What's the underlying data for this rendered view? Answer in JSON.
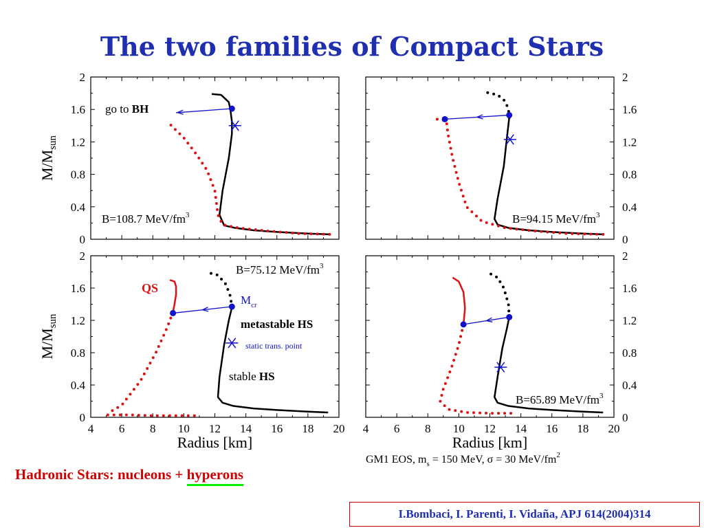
{
  "title": "The two families of Compact Stars",
  "footer": {
    "prefix": "Hadronic Stars: nucleons + ",
    "highlight": "hyperons"
  },
  "citation": "I.Bombaci, I. Parenti, I. Vidaña, APJ 614(2004)314",
  "eos_note": {
    "a": "GM1 EOS,   m",
    "a_sub": "s",
    "b": " = 150 MeV,    σ = 30 MeV/fm",
    "b_sup": "2"
  },
  "colors": {
    "hadronic": "#000000",
    "quark": "#dd1111",
    "transition": "#1111cc",
    "title": "#1f2fb0"
  },
  "chart_data": [
    {
      "type": "line",
      "position": "top-left",
      "xlim": [
        4,
        20
      ],
      "ylim": [
        0,
        2
      ],
      "yticks": [
        "0",
        "0.4",
        "0.8",
        "1.2",
        "1.6",
        "2"
      ],
      "ylabel": "M/M",
      "ylabel_sub": "sun",
      "label": {
        "text": "B=108.7 MeV/fm",
        "sup": "3"
      },
      "series": [
        {
          "style": "solid",
          "x": [
            19.4,
            18.0,
            16.0,
            14.5,
            13.3,
            12.6,
            12.3,
            12.5,
            12.9,
            13.1,
            13.1,
            13.0,
            12.9,
            12.4,
            11.8
          ],
          "y": [
            0.06,
            0.07,
            0.09,
            0.11,
            0.14,
            0.17,
            0.3,
            0.6,
            1.0,
            1.3,
            1.45,
            1.6,
            1.69,
            1.78,
            1.79
          ]
        },
        {
          "style": "dotted",
          "color_key": "quark",
          "x": [
            19.4,
            17.5,
            15.5,
            13.5,
            12.5,
            12.2,
            12.0,
            11.5,
            10.8,
            10.0,
            9.2,
            9.0
          ],
          "y": [
            0.06,
            0.07,
            0.1,
            0.14,
            0.18,
            0.3,
            0.6,
            0.85,
            1.05,
            1.25,
            1.4,
            1.44
          ]
        }
      ],
      "transition": {
        "from": [
          13.1,
          1.61
        ],
        "to": [
          9.5,
          1.56
        ]
      },
      "static_point": [
        13.3,
        1.4
      ],
      "annotation": {
        "prefix": "go to ",
        "bold": "BH"
      }
    },
    {
      "type": "line",
      "position": "top-right",
      "xlim": [
        4,
        20
      ],
      "ylim": [
        0,
        2
      ],
      "yticks": [
        "0",
        "0.4",
        "0.8",
        "1.2",
        "1.6",
        "2"
      ],
      "label": {
        "text": "B=94.15 MeV/fm",
        "sup": "3"
      },
      "series": [
        {
          "style": "solid",
          "x": [
            19.3,
            18.0,
            16.0,
            14.5,
            13.2,
            12.5,
            12.3,
            12.5,
            12.9,
            13.1,
            13.25
          ],
          "y": [
            0.06,
            0.07,
            0.09,
            0.11,
            0.14,
            0.18,
            0.25,
            0.5,
            0.9,
            1.25,
            1.5
          ]
        },
        {
          "style": "dotted",
          "color_key": "hadronic",
          "x": [
            13.25,
            13.2,
            13.0,
            12.5,
            11.8
          ],
          "y": [
            1.5,
            1.6,
            1.7,
            1.78,
            1.81
          ]
        },
        {
          "style": "dotted",
          "color_key": "quark",
          "x": [
            19.3,
            17.0,
            15.0,
            13.0,
            11.5,
            10.5,
            10.0,
            9.6,
            9.3,
            9.2,
            8.6
          ],
          "y": [
            0.06,
            0.07,
            0.1,
            0.14,
            0.22,
            0.4,
            0.7,
            1.0,
            1.3,
            1.46,
            1.48
          ]
        }
      ],
      "transition": {
        "from": [
          13.25,
          1.53
        ],
        "to": [
          9.1,
          1.48
        ]
      },
      "static_point": [
        13.3,
        1.23
      ]
    },
    {
      "type": "line",
      "position": "bottom-left",
      "xlim": [
        4,
        20
      ],
      "ylim": [
        0,
        2
      ],
      "xticks": [
        "4",
        "6",
        "8",
        "10",
        "12",
        "14",
        "16",
        "18",
        "20"
      ],
      "yticks": [
        "0",
        "0.4",
        "0.8",
        "1.2",
        "1.6",
        "2"
      ],
      "xlabel": "Radius [km]",
      "ylabel": "M/M",
      "ylabel_sub": "sun",
      "label": {
        "text": "B=75.12 MeV/fm",
        "sup": "3"
      },
      "series": [
        {
          "style": "solid",
          "x": [
            19.3,
            18.0,
            16.0,
            14.5,
            13.2,
            12.5,
            12.2,
            12.3,
            12.6,
            12.9,
            13.1
          ],
          "y": [
            0.06,
            0.07,
            0.09,
            0.11,
            0.14,
            0.18,
            0.25,
            0.5,
            0.9,
            1.2,
            1.36
          ]
        },
        {
          "style": "dotted",
          "color_key": "hadronic",
          "x": [
            13.1,
            13.0,
            12.7,
            12.2,
            11.4
          ],
          "y": [
            1.36,
            1.5,
            1.65,
            1.76,
            1.8
          ]
        },
        {
          "style": "solid",
          "color_key": "quark",
          "x": [
            9.3,
            9.4,
            9.5,
            9.5,
            9.4,
            9.1
          ],
          "y": [
            1.3,
            1.4,
            1.52,
            1.62,
            1.68,
            1.7
          ]
        },
        {
          "style": "dotted",
          "color_key": "quark",
          "x": [
            9.3,
            8.9,
            8.2,
            7.2,
            6.0,
            5.1
          ],
          "y": [
            1.3,
            1.1,
            0.8,
            0.45,
            0.15,
            0.05
          ]
        },
        {
          "style": "dotted",
          "color_key": "quark",
          "x": [
            5.1,
            6.5,
            8.0,
            9.5,
            10.8
          ],
          "y": [
            0.03,
            0.03,
            0.02,
            0.02,
            0.02
          ]
        }
      ],
      "transition": {
        "from": [
          13.1,
          1.37
        ],
        "to": [
          9.3,
          1.29
        ]
      },
      "static_point": [
        13.1,
        0.92
      ],
      "annotations": {
        "qs": "QS",
        "mcr": "M",
        "mcr_sub": "cr",
        "metastable": "metastable HS",
        "static_trans": "static trans. point",
        "stable": {
          "prefix": "stable ",
          "bold": "HS"
        }
      }
    },
    {
      "type": "line",
      "position": "bottom-right",
      "xlim": [
        4,
        20
      ],
      "ylim": [
        0,
        2
      ],
      "xticks": [
        "4",
        "6",
        "8",
        "10",
        "12",
        "14",
        "16",
        "18",
        "20"
      ],
      "yticks": [
        "0",
        "0.4",
        "0.8",
        "1.2",
        "1.6",
        "2"
      ],
      "xlabel": "Radius [km]",
      "label": {
        "text": "B=65.89 MeV/fm",
        "sup": "3"
      },
      "series": [
        {
          "style": "solid",
          "x": [
            19.3,
            18.0,
            16.0,
            14.5,
            13.2,
            12.5,
            12.3,
            12.5,
            12.8,
            13.1,
            13.25
          ],
          "y": [
            0.06,
            0.07,
            0.09,
            0.11,
            0.14,
            0.18,
            0.25,
            0.5,
            0.85,
            1.1,
            1.24
          ]
        },
        {
          "style": "dotted",
          "color_key": "hadronic",
          "x": [
            13.25,
            13.2,
            12.9,
            12.5,
            11.8
          ],
          "y": [
            1.24,
            1.4,
            1.6,
            1.73,
            1.8
          ]
        },
        {
          "style": "solid",
          "color_key": "quark",
          "x": [
            10.3,
            10.4,
            10.3,
            10.0,
            9.6
          ],
          "y": [
            1.15,
            1.35,
            1.55,
            1.68,
            1.73
          ]
        },
        {
          "style": "dotted",
          "color_key": "quark",
          "x": [
            10.3,
            10.0,
            9.5,
            9.0,
            8.8,
            9.3,
            10.5,
            12.0,
            13.5
          ],
          "y": [
            1.15,
            0.9,
            0.6,
            0.35,
            0.2,
            0.1,
            0.06,
            0.05,
            0.05
          ]
        }
      ],
      "transition": {
        "from": [
          13.25,
          1.24
        ],
        "to": [
          10.3,
          1.15
        ]
      },
      "static_point": [
        12.7,
        0.62
      ]
    }
  ]
}
